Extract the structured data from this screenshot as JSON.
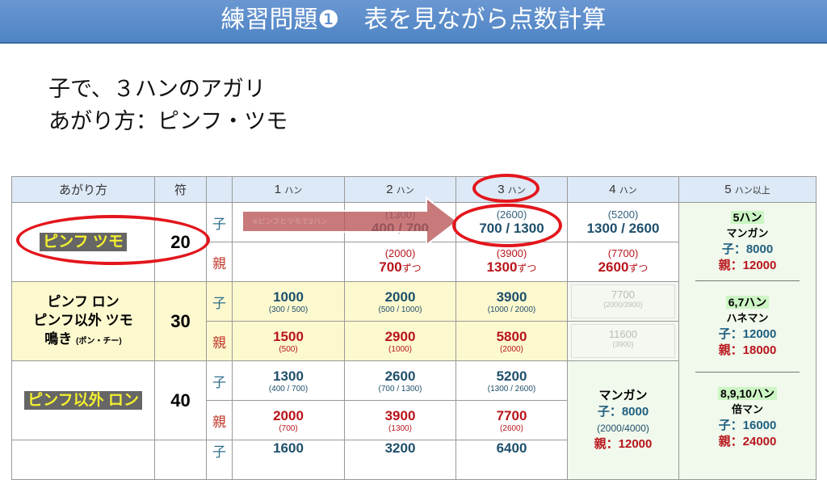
{
  "title": "練習問題❶　表を見ながら点数計算",
  "question": {
    "line1": "子で、３ハンのアガリ",
    "line2": "あがり方：ピンフ・ツモ"
  },
  "header": {
    "method": "あがり方",
    "fu": "符",
    "han": [
      "1",
      "2",
      "3",
      "4",
      "5"
    ],
    "han_unit": "ハン",
    "han5_suffix": "以上"
  },
  "labels": {
    "ko": "子",
    "oya": "親",
    "each": "ずつ"
  },
  "arrow_note": "※ピンフとツモで2ハン",
  "rows": [
    {
      "method": [
        "ピンフ ツモ"
      ],
      "fu": "20",
      "ko": [
        {
          "sub": "",
          "main": ""
        },
        {
          "sub": "(1300)",
          "main": "400 / 700"
        },
        {
          "sub": "(2600)",
          "main": "700 / 1300"
        },
        {
          "sub": "(5200)",
          "main": "1300 / 2600"
        }
      ],
      "oya": [
        {
          "sub": "",
          "main": ""
        },
        {
          "sub": "(2000)",
          "main": "700"
        },
        {
          "sub": "(3900)",
          "main": "1300"
        },
        {
          "sub": "(7700)",
          "main": "2600"
        }
      ]
    },
    {
      "method": [
        "ピンフ ロン",
        "ピンフ以外 ツモ",
        "鳴き"
      ],
      "method_note": "(ポン・チー)",
      "fu": "30",
      "ko": [
        {
          "main": "1000",
          "sub": "(300 / 500)"
        },
        {
          "main": "2000",
          "sub": "(500 / 1000)"
        },
        {
          "main": "3900",
          "sub": "(1000 / 2000)"
        },
        {
          "main": "7700",
          "sub": "(2000/3900)"
        }
      ],
      "oya": [
        {
          "main": "1500",
          "sub": "(500)"
        },
        {
          "main": "2900",
          "sub": "(1000)"
        },
        {
          "main": "5800",
          "sub": "(2000)"
        },
        {
          "main": "11600",
          "sub": "(3900)"
        }
      ]
    },
    {
      "method": [
        "ピンフ以外 ロン"
      ],
      "fu": "40",
      "ko": [
        {
          "main": "1300",
          "sub": "(400 / 700)"
        },
        {
          "main": "2600",
          "sub": "(700 / 1300)"
        },
        {
          "main": "5200",
          "sub": "(1300 / 2600)"
        }
      ],
      "oya": [
        {
          "main": "2000",
          "sub": "(700)"
        },
        {
          "main": "3900",
          "sub": "(1300)"
        },
        {
          "main": "7700",
          "sub": "(2600)"
        }
      ]
    },
    {
      "ko": [
        {
          "main": "1600"
        },
        {
          "main": "3200"
        },
        {
          "main": "6400"
        }
      ]
    }
  ],
  "mangan4": {
    "name": "マンガン",
    "ko": "子：8000",
    "ko_sub": "(2000/4000)",
    "oya": "親：12000"
  },
  "han5": [
    {
      "han": "5ハン",
      "name": "マンガン",
      "ko": "子：8000",
      "oya": "親：12000"
    },
    {
      "han": "6,7ハン",
      "name": "ハネマン",
      "ko": "子：12000",
      "oya": "親：18000"
    },
    {
      "han": "8,9,10ハン",
      "name": "倍マン",
      "ko": "子：16000",
      "oya": "親：24000"
    }
  ],
  "colors": {
    "title_bar": "#5088c8",
    "ko": "#1f4f6b",
    "oya": "#b8151b",
    "highlight": "#e3161c",
    "row30": "#fdf9cf",
    "header": "#dde9f6"
  }
}
